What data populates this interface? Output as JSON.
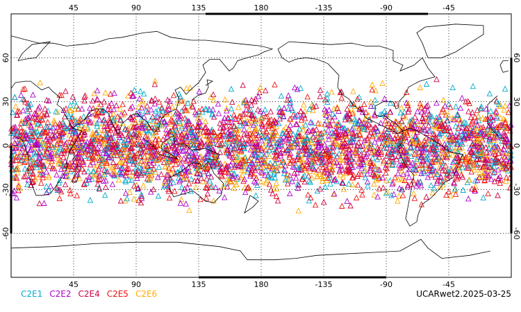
{
  "map": {
    "projection": "cylindrical-equidistant",
    "lon_range": [
      0,
      360
    ],
    "lat_range": [
      -90,
      90
    ],
    "grid": true,
    "lon_ticks": [
      45,
      90,
      135,
      180,
      -135,
      -90,
      -45
    ],
    "lat_ticks": [
      -60,
      -30,
      0,
      30,
      60
    ],
    "marker_shape": "open-triangle",
    "colors": {
      "frame": "#000000",
      "coast": "#000000",
      "grid": "#000000"
    }
  },
  "legend": {
    "placement": "bottom-left",
    "items": [
      {
        "label": "C2E1",
        "color": "#00aacc"
      },
      {
        "label": "C2E2",
        "color": "#aa00cc"
      },
      {
        "label": "C2E4",
        "color": "#cc0044"
      },
      {
        "label": "C2E5",
        "color": "#ee1111"
      },
      {
        "label": "C2E6",
        "color": "#ffaa00"
      }
    ]
  },
  "footer": {
    "label": "UCARwet2.2025-03-25"
  },
  "points": {
    "lat_range": [
      -48,
      48
    ],
    "description_count": 3600
  }
}
